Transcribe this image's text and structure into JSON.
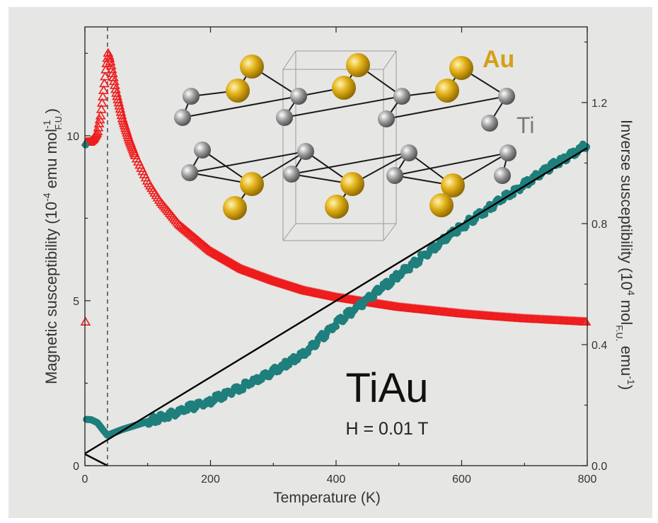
{
  "chart_data": {
    "type": "scatter",
    "xlabel": "Temperature (K)",
    "xlim": [
      0,
      800
    ],
    "x_ticks": [
      "0",
      "200",
      "400",
      "600",
      "800"
    ],
    "y_left": {
      "label_main": "Magnetic susceptibility (10",
      "label_exp1": "-4",
      "label_mid": " emu mol",
      "label_sub": "F.U.",
      "label_exp2": "-1",
      "label_end": ")",
      "ylim": [
        0,
        13.3
      ],
      "ticks": [
        "0",
        "5",
        "10"
      ]
    },
    "y_right": {
      "label_main": "Inverse susceptibility (10",
      "label_exp1": "4",
      "label_mid": " mol",
      "label_sub": "F.U.",
      "label_mid2": " emu",
      "label_exp2": "-1",
      "label_end": ")",
      "ylim": [
        0,
        1.45
      ],
      "ticks": [
        "0.0",
        "0.4",
        "0.8",
        "1.2"
      ]
    },
    "annotations": {
      "compound": "TiAu",
      "field": "H = 0.01 T",
      "au_label": "Au",
      "ti_label": "Ti",
      "transition_T": 36
    },
    "colors": {
      "susceptibility": "#ee1c1c",
      "inverse": "#1e7f7c",
      "fit": "#000000",
      "au_atom": "#e2b018",
      "ti_atom": "#9a9a9a",
      "au_text": "#d4a017",
      "ti_text": "#7a7a7a"
    },
    "series": [
      {
        "axis": "left",
        "marker": "open-triangle",
        "x": [
          2,
          8,
          14,
          20,
          25,
          30,
          34,
          37,
          40,
          45,
          50,
          60,
          70,
          80,
          100,
          120,
          150,
          200,
          250,
          300,
          350,
          400,
          450,
          500,
          550,
          600,
          650,
          700,
          750,
          800
        ],
        "y": [
          9.8,
          9.8,
          9.9,
          10.1,
          10.6,
          11.4,
          12.1,
          12.5,
          12.3,
          11.8,
          11.3,
          10.5,
          9.9,
          9.4,
          8.6,
          8.0,
          7.3,
          6.5,
          5.95,
          5.6,
          5.3,
          5.1,
          4.95,
          4.8,
          4.7,
          4.6,
          4.52,
          4.45,
          4.4,
          4.35
        ]
      },
      {
        "axis": "right",
        "marker": "filled-circle",
        "x": [
          2,
          10,
          20,
          30,
          36,
          45,
          60,
          80,
          100,
          150,
          200,
          250,
          300,
          350,
          400,
          450,
          500,
          550,
          600,
          650,
          700,
          750,
          800
        ],
        "y": [
          0.153,
          0.152,
          0.142,
          0.115,
          0.1,
          0.108,
          0.12,
          0.133,
          0.146,
          0.18,
          0.214,
          0.26,
          0.312,
          0.37,
          0.47,
          0.55,
          0.63,
          0.71,
          0.79,
          0.86,
          0.93,
          1.0,
          1.06
        ]
      },
      {
        "axis": "right",
        "marker": "line",
        "name": "fit",
        "x": [
          0,
          800
        ],
        "y": [
          0.04,
          1.05
        ]
      },
      {
        "axis": "left",
        "marker": "line",
        "name": "lower-left",
        "x": [
          0,
          36
        ],
        "y": [
          0.35,
          0
        ]
      }
    ]
  }
}
